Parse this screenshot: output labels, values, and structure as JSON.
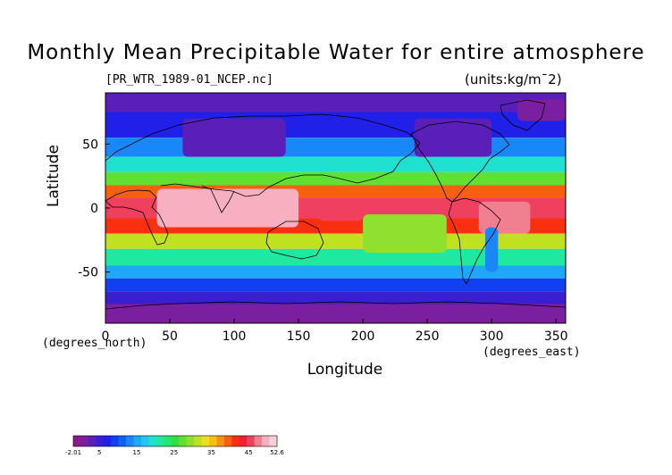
{
  "title": "Monthly Mean Precipitable Water for entire atmosphere",
  "source_file": "[PR_WTR_1989-01_NCEP.nc]",
  "units": "(units:kg/m¯2)",
  "axes": {
    "ylabel": "Latitude",
    "xlabel": "Longitude",
    "y_unit": "(degrees_north)",
    "x_unit": "(degrees_east)",
    "y_ticks": [
      "50",
      "0",
      "-50"
    ],
    "x_ticks": [
      "0",
      "50",
      "100",
      "150",
      "200",
      "250",
      "300",
      "350"
    ]
  },
  "colorbar": {
    "labels": [
      "-2.01",
      "5",
      "15",
      "25",
      "35",
      "45",
      "52.6"
    ],
    "colors": [
      "#8b1a8b",
      "#7a1fa0",
      "#5a1fb8",
      "#3a1fd0",
      "#2020e8",
      "#1040f0",
      "#1060f8",
      "#1888f8",
      "#20a8f8",
      "#20c8f0",
      "#20e0d0",
      "#20e8a0",
      "#20e870",
      "#30e040",
      "#60e030",
      "#90e030",
      "#c0e020",
      "#e8e020",
      "#f8c010",
      "#f89010",
      "#f86010",
      "#f83010",
      "#f02030",
      "#f04060",
      "#f08090",
      "#f8b0c0",
      "#f8d0d8"
    ]
  },
  "chart_data": {
    "type": "heatmap",
    "title": "Monthly Mean Precipitable Water for entire atmosphere",
    "xlabel": "Longitude",
    "ylabel": "Latitude",
    "xlim": [
      0,
      357.5
    ],
    "ylim": [
      -90,
      90
    ],
    "value_range": [
      -2.01,
      52.6
    ],
    "bands": [
      {
        "lat": [
          75,
          90
        ],
        "value": 3
      },
      {
        "lat": [
          55,
          75
        ],
        "value": 7
      },
      {
        "lat": [
          40,
          55
        ],
        "value": 13
      },
      {
        "lat": [
          28,
          40
        ],
        "value": 20
      },
      {
        "lat": [
          18,
          28
        ],
        "value": 28
      },
      {
        "lat": [
          8,
          18
        ],
        "value": 40
      },
      {
        "lat": [
          -8,
          8
        ],
        "value": 45
      },
      {
        "lat": [
          -20,
          -8
        ],
        "value": 42
      },
      {
        "lat": [
          -32,
          -20
        ],
        "value": 32
      },
      {
        "lat": [
          -45,
          -32
        ],
        "value": 22
      },
      {
        "lat": [
          -55,
          -45
        ],
        "value": 15
      },
      {
        "lat": [
          -65,
          -55
        ],
        "value": 10
      },
      {
        "lat": [
          -75,
          -65
        ],
        "value": 6
      },
      {
        "lat": [
          -90,
          -75
        ],
        "value": 2
      }
    ],
    "regions": [
      {
        "lon": [
          40,
          150
        ],
        "lat": [
          -15,
          15
        ],
        "value": 49
      },
      {
        "lon": [
          165,
          200
        ],
        "lat": [
          -10,
          5
        ],
        "value": 46
      },
      {
        "lon": [
          290,
          330
        ],
        "lat": [
          -20,
          5
        ],
        "value": 48
      },
      {
        "lon": [
          295,
          305
        ],
        "lat": [
          -50,
          -15
        ],
        "value": 14
      },
      {
        "lon": [
          200,
          265
        ],
        "lat": [
          -35,
          -5
        ],
        "value": 30
      },
      {
        "lon": [
          240,
          300
        ],
        "lat": [
          40,
          70
        ],
        "value": 3
      },
      {
        "lon": [
          60,
          140
        ],
        "lat": [
          40,
          70
        ],
        "value": 3
      },
      {
        "lon": [
          320,
          357.5
        ],
        "lat": [
          68,
          85
        ],
        "value": 1
      }
    ]
  }
}
